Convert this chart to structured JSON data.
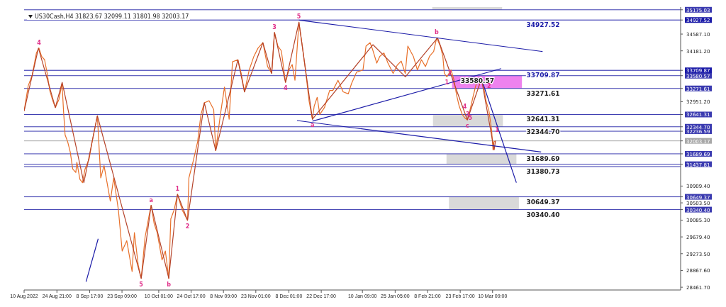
{
  "chart_data": {
    "type": "line",
    "title": "US30Cash,H4  31823.67 32099.11 31801.98 32003.17",
    "xlim": [
      "2022-08-10T00:00",
      "2023-06-03T15:00"
    ],
    "xticks": [
      {
        "value": "2022-08-10T00:00",
        "label": "10 Aug 2022"
      },
      {
        "value": "2022-08-24T21:00",
        "label": "24 Aug 21:00"
      },
      {
        "value": "2022-09-08T17:00",
        "label": "8 Sep 17:00"
      },
      {
        "value": "2022-09-23T09:00",
        "label": "23 Sep 09:00"
      },
      {
        "value": "2022-10-10T01:00",
        "label": "10 Oct 01:00"
      },
      {
        "value": "2022-10-24T17:00",
        "label": "24 Oct 17:00"
      },
      {
        "value": "2022-11-08T09:00",
        "label": "8 Nov 09:00"
      },
      {
        "value": "2022-11-23T01:00",
        "label": "23 Nov 01:00"
      },
      {
        "value": "2022-12-08T01:00",
        "label": "8 Dec 01:00"
      },
      {
        "value": "2022-12-22T17:00",
        "label": "22 Dec 17:00"
      },
      {
        "value": "2023-01-10T09:00",
        "label": "10 Jan 09:00"
      },
      {
        "value": "2023-01-25T05:00",
        "label": "25 Jan 05:00"
      },
      {
        "value": "2023-02-08T21:00",
        "label": "8 Feb 21:00"
      },
      {
        "value": "2023-02-23T17:00",
        "label": "23 Feb 17:00"
      },
      {
        "value": "2023-03-10T09:00",
        "label": "10 Mar 09:00"
      }
    ],
    "ylim": [
      28395,
      35240
    ],
    "yticks": [
      {
        "value": 28461.7,
        "label": "28461.70"
      },
      {
        "value": 28867.6,
        "label": "28867.60"
      },
      {
        "value": 29273.5,
        "label": "29273.50"
      },
      {
        "value": 29679.4,
        "label": "29679.40"
      },
      {
        "value": 30085.3,
        "label": "30085.30"
      },
      {
        "value": 30340.4,
        "label": "30340.40"
      },
      {
        "value": 30503.5,
        "label": "30503.50"
      },
      {
        "value": 30649.37,
        "label": "30649.37"
      },
      {
        "value": 30909.4,
        "label": "30909.40"
      },
      {
        "value": 31437.81,
        "label": "31437.81"
      },
      {
        "value": 31689.69,
        "label": "31689.69"
      },
      {
        "value": 32003.17,
        "label": "32003.17"
      },
      {
        "value": 32236.59,
        "label": "32236.59"
      },
      {
        "value": 32344.7,
        "label": "32344.70"
      },
      {
        "value": 32641.31,
        "label": "32641.31"
      },
      {
        "value": 32951.2,
        "label": "32951.20"
      },
      {
        "value": 33271.61,
        "label": "33271.61"
      },
      {
        "value": 33580.57,
        "label": "33580.57"
      },
      {
        "value": 33709.87,
        "label": "33709.87"
      },
      {
        "value": 34181.2,
        "label": "34181.20"
      },
      {
        "value": 34587.1,
        "label": "34587.10"
      },
      {
        "value": 34927.52,
        "label": "34927.52"
      },
      {
        "value": 35175.03,
        "label": "35175.03"
      }
    ],
    "series": [
      {
        "type": "bar",
        "x": [
          "2023-02-26T21:00",
          "2023-02-27T05:00",
          "2023-03-05T08:00",
          "2023-03-06T11:00",
          "2023-03-07T20:00"
        ],
        "base": [
          35175.03,
          32344.7,
          31437.81,
          30340.4,
          33271.61
        ],
        "values": [
          64.97,
          296.61,
          251.88,
          308.97,
          308.96
        ],
        "colors": [
          "#d9d9d9",
          "#d9d9d9",
          "#d9d9d9",
          "#d9d9d9",
          "#ee82ee"
        ]
      },
      {
        "color": "#e8702a",
        "x": [
          "2022-08-10T00:00",
          "2022-08-11T21:00",
          "2022-08-13T17:00",
          "2022-08-15T14:00",
          "2022-08-16T18:00",
          "2022-08-17T22:00",
          "2022-08-19T07:00",
          "2022-08-20T11:00",
          "2022-08-21T15:00",
          "2022-08-23T00:00",
          "2022-08-24T04:00",
          "2022-08-25T19:00",
          "2022-08-27T05:00",
          "2022-08-27T21:00",
          "2022-08-28T14:00",
          "2022-08-29T18:00",
          "2022-08-30T22:00",
          "2022-09-01T01:00",
          "2022-09-02T11:00",
          "2022-09-02T22:00",
          "2022-09-04T07:00",
          "2022-09-05T11:00",
          "2022-09-06T15:00",
          "2022-09-08T12:00",
          "2022-09-09T20:00",
          "2022-09-12T05:00",
          "2022-09-13T18:00",
          "2022-09-15T06:00",
          "2022-09-18T02:00",
          "2022-09-19T15:00",
          "2022-09-21T18:00",
          "2022-09-23T11:00",
          "2022-09-25T13:00",
          "2022-09-27T23:00",
          "2022-09-29T00:00",
          "2022-09-30T17:00",
          "2022-10-02T02:00",
          "2022-10-03T20:00",
          "2022-10-05T13:00",
          "2022-10-06T14:00",
          "2022-10-07T23:00",
          "2022-10-09T08:00",
          "2022-10-11T13:00",
          "2022-10-13T01:00",
          "2022-10-14T14:00",
          "2022-10-15T12:00",
          "2022-10-17T00:00",
          "2022-10-18T13:00",
          "2022-10-20T16:00",
          "2022-10-23T02:00",
          "2022-10-23T17:00",
          "2022-10-25T13:00",
          "2022-10-27T16:00",
          "2022-10-29T04:00",
          "2022-10-30T17:00",
          "2022-11-01T20:00",
          "2022-11-03T23:00",
          "2022-11-04T21:00",
          "2022-11-07T00:00",
          "2022-11-08T20:00",
          "2022-11-10T23:00",
          "2022-11-12T11:00",
          "2022-11-14T22:00",
          "2022-11-16T10:00",
          "2022-11-17T22:00",
          "2022-11-20T01:00",
          "2022-11-22T04:00",
          "2022-11-24T01:00",
          "2022-11-26T06:00",
          "2022-11-28T09:00",
          "2022-11-30T06:00",
          "2022-12-01T12:00",
          "2022-12-03T01:00",
          "2022-12-04T15:00",
          "2022-12-06T12:00",
          "2022-12-08T01:00",
          "2022-12-09T13:00",
          "2022-12-10T19:00",
          "2022-12-12T14:00",
          "2022-12-14T03:00",
          "2022-12-15T15:00",
          "2022-12-17T04:00",
          "2022-12-18T17:00",
          "2022-12-19T12:00",
          "2022-12-20T21:00",
          "2022-12-22T01:00",
          "2022-12-24T04:00",
          "2022-12-26T12:00",
          "2022-12-27T23:00",
          "2022-12-30T07:00",
          "2023-01-01T15:00",
          "2023-01-03T23:00",
          "2023-01-05T10:00",
          "2023-01-07T18:00",
          "2023-01-10T15:00",
          "2023-01-12T00:00",
          "2023-01-13T20:00",
          "2023-01-15T00:00",
          "2023-01-16T21:00",
          "2023-01-18T06:00",
          "2023-01-20T03:00",
          "2023-01-21T23:00",
          "2023-01-24T07:00",
          "2023-01-26T03:00",
          "2023-01-27T23:00",
          "2023-01-29T19:00",
          "2023-01-30T23:00",
          "2023-02-02T11:00",
          "2023-02-04T07:00",
          "2023-02-06T03:00",
          "2023-02-07T23:00",
          "2023-02-09T19:00",
          "2023-02-11T16:00",
          "2023-02-13T01:00",
          "2023-02-14T16:00",
          "2023-02-15T20:00",
          "2023-02-16T12:00",
          "2023-02-17T16:00",
          "2023-02-19T13:00",
          "2023-02-20T22:00",
          "2023-02-22T02:00",
          "2023-02-23T06:00",
          "2023-02-24T15:00",
          "2023-02-25T18:00",
          "2023-02-26T22:00",
          "2023-02-28T01:00",
          "2023-03-01T11:00",
          "2023-03-02T14:00",
          "2023-03-03T18:00",
          "2023-03-05T03:00",
          "2023-03-06T06:00",
          "2023-03-07T10:00",
          "2023-03-08T18:00",
          "2023-03-09T22:00",
          "2023-03-10T14:00",
          "2023-03-11T01:00",
          "2023-03-11T17:00"
        ],
        "values": [
          32726,
          33338,
          33603,
          34131,
          34247,
          34049,
          33966,
          33636,
          33222,
          32974,
          32809,
          33007,
          33388,
          32726,
          32148,
          31983,
          31735,
          31321,
          31239,
          31487,
          31073,
          30991,
          31321,
          31569,
          31983,
          32611,
          31107,
          31404,
          30545,
          31107,
          30330,
          29338,
          29586,
          28842,
          29784,
          29007,
          28677,
          29669,
          30164,
          30445,
          29999,
          29784,
          29123,
          29338,
          28677,
          30115,
          30330,
          30710,
          30330,
          30082,
          31107,
          31487,
          31983,
          32644,
          32925,
          32974,
          32760,
          31768,
          32644,
          33305,
          32528,
          33917,
          33966,
          33636,
          33189,
          33718,
          34049,
          34247,
          34379,
          33801,
          33636,
          34627,
          34297,
          34181,
          33421,
          33718,
          33850,
          33470,
          34875,
          34297,
          33685,
          32974,
          32528,
          32842,
          33057,
          32644,
          32809,
          33222,
          33222,
          33470,
          33189,
          33140,
          33388,
          33669,
          33718,
          34297,
          34379,
          34214,
          33884,
          34049,
          34131,
          33884,
          33636,
          33834,
          33933,
          33636,
          34297,
          34049,
          33718,
          33966,
          33801,
          34049,
          34165,
          34495,
          34297,
          34049,
          33636,
          33553,
          33718,
          33470,
          33107,
          32842,
          32644,
          32561,
          32512,
          32726,
          33057,
          33305,
          33503,
          33503,
          33338,
          32974,
          32726,
          32280,
          31784,
          31983,
          32003
        ]
      },
      {
        "color": "#b5442b",
        "x": [
          "2022-08-10T00:00",
          "2022-08-16T12:00",
          "2022-08-24T04:00",
          "2022-08-27T06:00",
          "2022-09-06T02:00",
          "2022-09-12T05:00",
          "2022-10-02T02:00",
          "2022-10-06T14:00",
          "2022-10-14T14:00",
          "2022-10-18T13:00",
          "2022-10-23T02:00",
          "2022-10-30T17:00",
          "2022-11-04T21:00",
          "2022-11-14T22:00",
          "2022-11-17T22:00",
          "2022-11-26T06:00",
          "2022-11-30T06:00",
          "2022-12-01T12:00",
          "2022-12-06T12:00",
          "2022-12-12T14:00",
          "2022-12-18T17:00",
          "2023-01-15T03:00",
          "2023-01-29T20:00",
          "2023-02-13T11:00",
          "2023-02-26T22:00",
          "2023-03-05T08:00",
          "2023-03-11T02:00",
          "2023-03-11T17:00"
        ],
        "values": [
          32726,
          34247,
          32809,
          33421,
          30991,
          32611,
          28677,
          30445,
          28677,
          30710,
          30082,
          32925,
          31768,
          33966,
          33189,
          34379,
          33636,
          34627,
          33421,
          34875,
          32528,
          34330,
          33553,
          34495,
          32512,
          33503,
          31784,
          32003
        ]
      },
      {
        "type": "line",
        "color": "#1c1ca8",
        "x": [
          "2022-12-12T14:00",
          "2023-04-02T01:00"
        ],
        "values": [
          34925,
          34165
        ]
      },
      {
        "type": "line",
        "color": "#1c1ca8",
        "x": [
          "2022-12-18T17:00",
          "2023-03-14T06:00"
        ],
        "values": [
          32479,
          33751
        ]
      },
      {
        "type": "line",
        "color": "#1c1ca8",
        "x": [
          "2022-12-11T17:00",
          "2023-04-01T09:00"
        ],
        "values": [
          32495,
          31735
        ]
      },
      {
        "type": "line",
        "color": "#1c1ca8",
        "x": [
          "2023-03-05T08:00",
          "2023-03-21T04:00"
        ],
        "values": [
          33503,
          30991
        ]
      },
      {
        "type": "line",
        "color": "#1c1ca8",
        "x": [
          "2022-09-07T02:00",
          "2022-09-12T14:00"
        ],
        "values": [
          28594,
          29635
        ]
      }
    ],
    "ref_lines": [
      {
        "axis": "y",
        "value": 35175.03,
        "color": "#3b3bb0"
      },
      {
        "axis": "y",
        "value": 34927.52,
        "label": "34927.52",
        "color": "#1c1ca8"
      },
      {
        "axis": "y",
        "value": 33709.87,
        "label": "33709.87",
        "color": "#1c1ca8"
      },
      {
        "axis": "y",
        "value": 33580.57,
        "label": "33580.57",
        "color": "#3b3bb0"
      },
      {
        "axis": "y",
        "value": 33271.61,
        "label": "33271.61",
        "color": "#3b3bb0"
      },
      {
        "axis": "y",
        "value": 32641.31,
        "label": "32641.31",
        "color": "#3b3bb0"
      },
      {
        "axis": "y",
        "value": 32344.7,
        "label": "32344.70",
        "color": "#3b3bb0"
      },
      {
        "axis": "y",
        "value": 32236.59,
        "color": "#3b3bb0"
      },
      {
        "axis": "y",
        "value": 32003.17,
        "color": "#a8a8a8"
      },
      {
        "axis": "y",
        "value": 31689.69,
        "label": "31689.69",
        "color": "#3b3bb0"
      },
      {
        "axis": "y",
        "value": 31437.81,
        "color": "#3b3bb0"
      },
      {
        "axis": "y",
        "value": 31380.73,
        "label": "31380.73",
        "color": "#3b3bb0"
      },
      {
        "axis": "y",
        "value": 30649.37,
        "label": "30649.37",
        "color": "#3b3bb0"
      },
      {
        "axis": "y",
        "value": 30340.4,
        "label": "30340.40",
        "color": "#3b3bb0"
      }
    ],
    "annotations": [
      {
        "text": "4",
        "x": "2022-08-16T18:00",
        "y": 34247
      },
      {
        "text": "5",
        "x": "2022-10-02T02:00",
        "y": 28677
      },
      {
        "text": "a",
        "x": "2022-10-06T14:00",
        "y": 30445
      },
      {
        "text": "b",
        "x": "2022-10-14T14:00",
        "y": 28677
      },
      {
        "text": "1",
        "x": "2022-10-18T13:00",
        "y": 30710
      },
      {
        "text": "2",
        "x": "2022-10-23T02:00",
        "y": 30082
      },
      {
        "text": "3",
        "x": "2022-12-01T12:00",
        "y": 34627
      },
      {
        "text": "4",
        "x": "2022-12-06T12:00",
        "y": 33421
      },
      {
        "text": "5",
        "x": "2022-12-12T14:00",
        "y": 34875
      },
      {
        "text": "a",
        "x": "2022-12-18T17:00",
        "y": 32528
      },
      {
        "text": "b",
        "x": "2023-02-13T01:00",
        "y": 34495
      },
      {
        "text": "c",
        "x": "2023-02-26T22:00",
        "y": 32512
      },
      {
        "text": "2",
        "x": "2023-02-16T12:00",
        "y": 33636
      },
      {
        "text": "1",
        "x": "2023-02-17T16:00",
        "y": 33553
      },
      {
        "text": "4",
        "x": "2023-02-23T06:00",
        "y": 32842
      },
      {
        "text": "3",
        "x": "2023-02-24T15:00",
        "y": 32644
      },
      {
        "text": "5",
        "x": "2023-02-25T18:00",
        "y": 32561
      },
      {
        "text": "1",
        "x": "2023-03-09T22:00",
        "y": 32280
      },
      {
        "text": "2",
        "x": "2023-03-06T06:00",
        "y": 33338
      }
    ]
  }
}
